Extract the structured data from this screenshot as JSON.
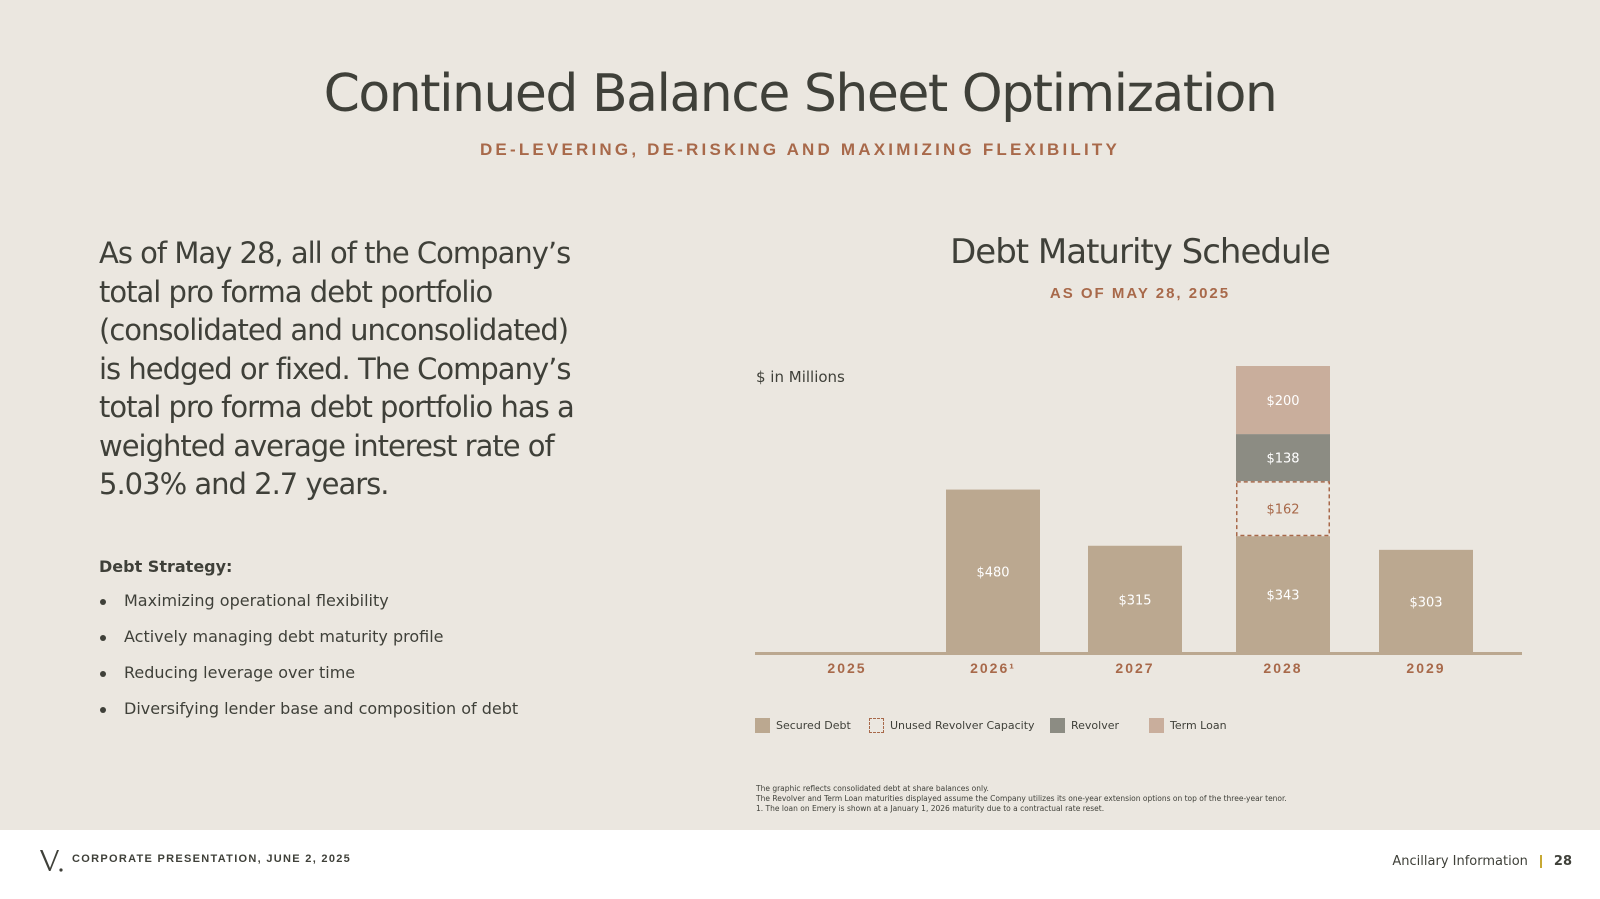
{
  "header": {
    "title": "Continued Balance Sheet Optimization",
    "subtitle": "DE-LEVERING, DE-RISKING AND MAXIMIZING FLEXIBILITY"
  },
  "left": {
    "lead_text": "As of May 28, all of the Company’s total pro forma debt portfolio (consolidated and unconsolidated) is hedged or fixed. The Company’s total pro forma debt portfolio has a weighted average interest rate of 5.03% and 2.7 years.",
    "strategy_heading": "Debt Strategy:",
    "strategy_items": [
      "Maximizing operational flexibility",
      "Actively managing debt maturity profile",
      "Reducing leverage over time",
      "Diversifying lender base and composition of debt"
    ]
  },
  "chart_data": {
    "type": "bar",
    "stacked": true,
    "title": "Debt Maturity Schedule",
    "subtitle": "AS OF MAY 28, 2025",
    "ylabel": "$ in Millions",
    "categories": [
      "2025",
      "2026¹",
      "2027",
      "2028",
      "2029"
    ],
    "series": [
      {
        "name": "Secured Debt",
        "values": [
          0,
          480,
          315,
          343,
          303
        ],
        "labels": [
          "",
          "$480",
          "$315",
          "$343",
          "$303"
        ],
        "color": "#bba890",
        "style": "solid"
      },
      {
        "name": "Unused Revolver Capacity",
        "values": [
          0,
          0,
          0,
          162,
          0
        ],
        "labels": [
          "",
          "",
          "",
          "$162",
          ""
        ],
        "color": "#a8694a",
        "style": "dashed"
      },
      {
        "name": "Revolver",
        "values": [
          0,
          0,
          0,
          138,
          0
        ],
        "labels": [
          "",
          "",
          "",
          "$138",
          ""
        ],
        "color": "#8c8c83",
        "style": "solid"
      },
      {
        "name": "Term Loan",
        "values": [
          0,
          0,
          0,
          200,
          0
        ],
        "labels": [
          "",
          "",
          "",
          "$200",
          ""
        ],
        "color": "#c9ae9c",
        "style": "solid"
      }
    ],
    "ylim": [
      0,
      843
    ],
    "grid": false,
    "legend_position": "bottom"
  },
  "footnotes": [
    "The graphic reflects consolidated debt at share balances only.",
    "The Revolver and Term Loan maturities displayed assume the Company utilizes its one-year extension options on top of the three-year tenor.",
    "1. The loan on Emery is shown at a January 1, 2026 maturity due to a contractual rate reset."
  ],
  "footer": {
    "left_text": "CORPORATE PRESENTATION, JUNE 2, 2025",
    "section": "Ancillary Information",
    "page_number": "28",
    "logo_icon": "v-monogram-icon"
  },
  "colors": {
    "background": "#ebe7e0",
    "accent": "#a8694a",
    "text": "#3f4039",
    "footer_separator": "#c7a934"
  }
}
